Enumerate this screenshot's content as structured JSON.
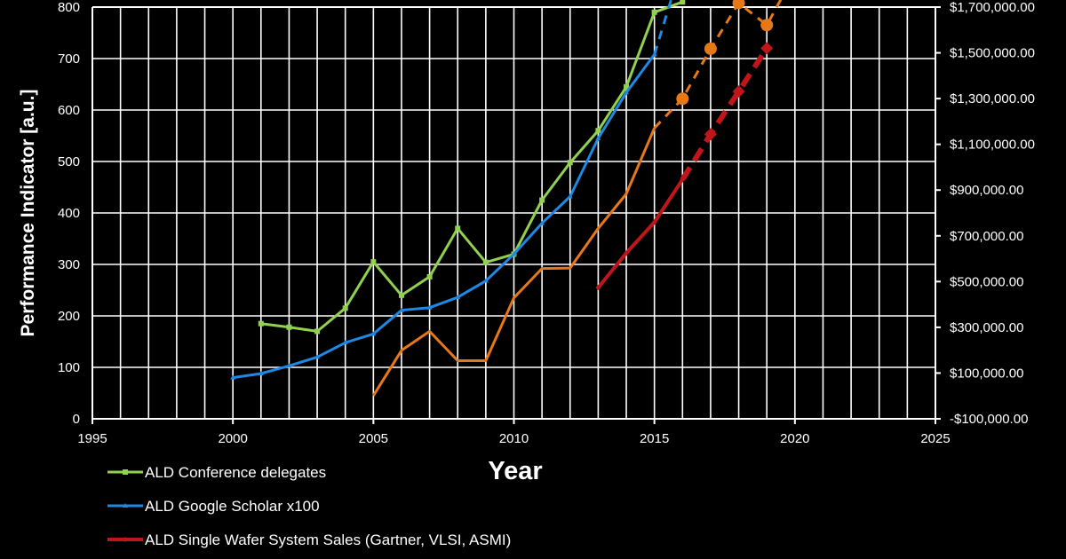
{
  "chart_data": {
    "type": "line",
    "title": "",
    "xlabel": "Year",
    "ylabel": "Performance Indicator [a.u.]",
    "xlim": [
      1995,
      2025
    ],
    "x_ticks": [
      "1995",
      "2000",
      "2005",
      "2010",
      "2015",
      "2020",
      "2025"
    ],
    "ylim": [
      0,
      800
    ],
    "y_ticks": [
      "0",
      "100",
      "200",
      "300",
      "400",
      "500",
      "600",
      "700",
      "800"
    ],
    "y2lim": [
      -100000,
      1700000
    ],
    "y2_ticks": [
      "-$100,000.00",
      "$100,000.00",
      "$300,000.00",
      "$500,000.00",
      "$700,000.00",
      "$900,000.00",
      "$1,100,000.00",
      "$1,300,000.00",
      "$1,500,000.00",
      "$1,700,000.00"
    ],
    "grid": true,
    "series": [
      {
        "name": "ALD Conference delegates",
        "color": "#92D050",
        "marker": "square",
        "legend": true,
        "points": [
          [
            2001,
            185
          ],
          [
            2002,
            178
          ],
          [
            2003,
            170
          ],
          [
            2004,
            215
          ],
          [
            2005,
            305
          ],
          [
            2006,
            240
          ],
          [
            2007,
            276
          ],
          [
            2008,
            370
          ],
          [
            2009,
            304
          ],
          [
            2010,
            320
          ],
          [
            2011,
            425
          ],
          [
            2012,
            498
          ],
          [
            2013,
            560
          ],
          [
            2014,
            645
          ],
          [
            2015,
            790
          ],
          [
            2016,
            810
          ]
        ]
      },
      {
        "name": "ALD Google Scholar x100",
        "color": "#1E88E5",
        "marker": "triangle",
        "legend": true,
        "points": [
          [
            2000,
            80
          ],
          [
            2001,
            88
          ],
          [
            2002,
            103
          ],
          [
            2003,
            120
          ],
          [
            2004,
            148
          ],
          [
            2005,
            165
          ],
          [
            2006,
            211
          ],
          [
            2007,
            216
          ],
          [
            2008,
            236
          ],
          [
            2009,
            268
          ],
          [
            2010,
            320
          ],
          [
            2011,
            380
          ],
          [
            2012,
            432
          ],
          [
            2013,
            545
          ],
          [
            2014,
            634
          ],
          [
            2015,
            708
          ]
        ],
        "projection": [
          [
            2015,
            708
          ],
          [
            2015.6,
            815
          ]
        ]
      },
      {
        "name": "",
        "color": "#E67817",
        "marker": "none",
        "legend": false,
        "points": [
          [
            2005,
            45
          ],
          [
            2006,
            133
          ],
          [
            2007,
            170
          ],
          [
            2008,
            113
          ],
          [
            2009,
            113
          ],
          [
            2010,
            235
          ],
          [
            2011,
            292
          ],
          [
            2012,
            293
          ],
          [
            2013,
            370
          ],
          [
            2014,
            437
          ],
          [
            2015,
            565
          ]
        ],
        "projection": [
          [
            2015,
            565
          ],
          [
            2016,
            622
          ],
          [
            2017,
            719
          ],
          [
            2018,
            808
          ],
          [
            2019,
            765
          ],
          [
            2019.6,
            825
          ]
        ],
        "projection_markers": [
          [
            2016,
            622
          ],
          [
            2017,
            719
          ],
          [
            2018,
            808
          ],
          [
            2019,
            765
          ]
        ]
      },
      {
        "name": "ALD Single Wafer System Sales (Gartner, VLSI, ASMI)",
        "color": "#C0161B",
        "marker": "diamond",
        "legend": true,
        "points": [
          [
            2013,
            255
          ],
          [
            2014,
            322
          ],
          [
            2015,
            382
          ],
          [
            2016,
            465
          ]
        ],
        "projection": [
          [
            2016,
            465
          ],
          [
            2017,
            553
          ],
          [
            2018,
            636
          ],
          [
            2019,
            720
          ]
        ],
        "projection_markers": [
          [
            2017,
            553
          ],
          [
            2018,
            636
          ],
          [
            2019,
            720
          ]
        ]
      }
    ]
  }
}
